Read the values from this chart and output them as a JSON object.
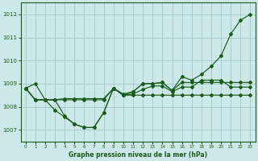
{
  "background_color": "#cce8e8",
  "grid_color": "#aacccc",
  "line_color": "#1a5c1a",
  "title": "Graphe pression niveau de la mer (hPa)",
  "xlim": [
    -0.5,
    23.5
  ],
  "ylim": [
    1006.5,
    1012.5
  ],
  "yticks": [
    1007,
    1008,
    1009,
    1010,
    1011,
    1012
  ],
  "xticks": [
    0,
    1,
    2,
    3,
    4,
    5,
    6,
    7,
    8,
    9,
    10,
    11,
    12,
    13,
    14,
    15,
    16,
    17,
    18,
    19,
    20,
    21,
    22,
    23
  ],
  "s1": [
    1008.8,
    1009.0,
    1008.3,
    1007.85,
    1007.55,
    1007.25,
    1007.1,
    1007.1,
    1007.75,
    1008.8,
    1008.55,
    1008.65,
    1009.0,
    1009.0,
    1009.05,
    1008.7,
    1009.3,
    1009.15,
    1009.4,
    1009.75,
    1010.2,
    1011.15,
    1011.75,
    1012.0
  ],
  "s2": [
    1008.8,
    1008.3,
    1008.3,
    1008.3,
    1008.35,
    1008.35,
    1008.35,
    1008.35,
    1008.35,
    1008.8,
    1008.5,
    1008.55,
    1008.75,
    1008.9,
    1008.9,
    1008.65,
    1008.85,
    1008.85,
    1009.15,
    1009.15,
    1009.15,
    1008.85,
    1008.85,
    1008.85
  ],
  "s3": [
    1008.8,
    1008.3,
    1008.3,
    1008.3,
    1008.3,
    1008.3,
    1008.3,
    1008.3,
    1008.3,
    1008.8,
    1008.5,
    1008.5,
    1008.5,
    1008.5,
    1008.5,
    1008.5,
    1008.5,
    1008.5,
    1008.5,
    1008.5,
    1008.5,
    1008.5,
    1008.5,
    1008.5
  ],
  "s4": [
    1008.8,
    1008.3,
    1008.3,
    1008.3,
    1007.6,
    1007.25,
    1007.1,
    1007.1,
    1007.75,
    1008.8,
    1008.5,
    1008.65,
    1009.0,
    1009.0,
    1009.05,
    1008.7,
    1009.05,
    1009.05,
    1009.05,
    1009.05,
    1009.05,
    1009.05,
    1009.05,
    1009.05
  ]
}
